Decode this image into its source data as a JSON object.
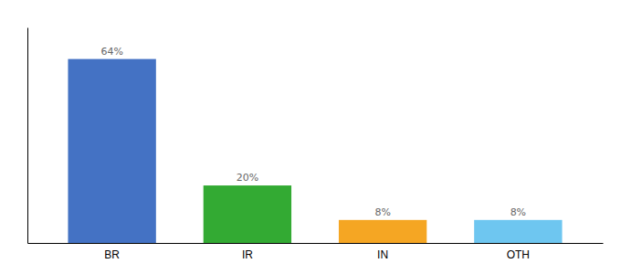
{
  "chart_data": {
    "type": "bar",
    "categories": [
      "BR",
      "IR",
      "IN",
      "OTH"
    ],
    "values": [
      64,
      20,
      8,
      8
    ],
    "value_labels": [
      "64%",
      "20%",
      "8%",
      "8%"
    ],
    "data_labels": true,
    "colors": [
      "#4472c4",
      "#33aa33",
      "#f5a623",
      "#6ec6f0"
    ],
    "ylim": [
      0,
      75
    ],
    "grid": false,
    "tick_labels": "x"
  }
}
